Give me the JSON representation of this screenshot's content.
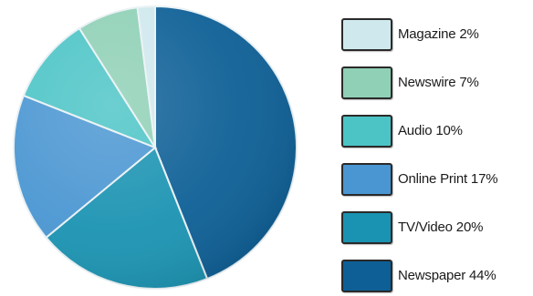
{
  "chart_data": {
    "type": "pie",
    "title": "",
    "legend_position": "right",
    "slices": [
      {
        "label": "Magazine 2%",
        "category": "Magazine",
        "value": 2,
        "color": "#cfe8ee"
      },
      {
        "label": "Newswire 7%",
        "category": "Newswire",
        "value": 7,
        "color": "#8fd0b6"
      },
      {
        "label": "Audio 10%",
        "category": "Audio",
        "value": 10,
        "color": "#4cc4c6"
      },
      {
        "label": "Online Print 17%",
        "category": "Online Print",
        "value": 17,
        "color": "#4a96d2"
      },
      {
        "label": "TV/Video 20%",
        "category": "TV/Video",
        "value": 20,
        "color": "#1a93b2"
      },
      {
        "label": "Newspaper 44%",
        "category": "Newspaper",
        "value": 44,
        "color": "#0d5f96"
      }
    ]
  }
}
